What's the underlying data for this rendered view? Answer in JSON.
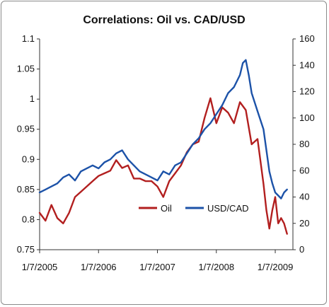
{
  "chart_data": {
    "type": "line",
    "title": "Correlations: Oil vs. CAD/USD",
    "xlabel": "",
    "ylabel_left": "",
    "ylabel_right": "",
    "x_tick_labels": [
      "1/7/2005",
      "1/7/2006",
      "1/7/2007",
      "1/7/2008",
      "1/7/2009"
    ],
    "x_range": [
      2005.0,
      2009.3
    ],
    "y_left": {
      "range": [
        0.75,
        1.1
      ],
      "ticks": [
        "0.75",
        "0.8",
        "0.85",
        "0.9",
        "0.95",
        "1",
        "1.05",
        "1.1"
      ]
    },
    "y_right": {
      "range": [
        0,
        160
      ],
      "ticks": [
        "0",
        "20",
        "40",
        "60",
        "80",
        "100",
        "120",
        "140",
        "160"
      ]
    },
    "grid": false,
    "legend": {
      "placement": "lower-center",
      "entries": [
        "Oil",
        "USD/CAD"
      ]
    },
    "series": [
      {
        "name": "Oil",
        "axis": "right",
        "color": "#b21f1f",
        "x": [
          2005.0,
          2005.1,
          2005.2,
          2005.3,
          2005.4,
          2005.5,
          2005.6,
          2005.7,
          2005.8,
          2005.9,
          2006.0,
          2006.1,
          2006.2,
          2006.3,
          2006.4,
          2006.5,
          2006.6,
          2006.7,
          2006.8,
          2006.9,
          2007.0,
          2007.1,
          2007.2,
          2007.3,
          2007.4,
          2007.5,
          2007.6,
          2007.7,
          2007.8,
          2007.9,
          2008.0,
          2008.1,
          2008.2,
          2008.3,
          2008.4,
          2008.5,
          2008.6,
          2008.7,
          2008.8,
          2008.85,
          2008.9,
          2008.95,
          2009.0,
          2009.05,
          2009.1,
          2009.15,
          2009.2
        ],
        "values": [
          28,
          22,
          34,
          24,
          20,
          28,
          40,
          44,
          48,
          52,
          56,
          58,
          60,
          68,
          62,
          64,
          54,
          54,
          52,
          52,
          48,
          40,
          52,
          58,
          64,
          74,
          80,
          82,
          100,
          115,
          96,
          108,
          104,
          96,
          112,
          106,
          80,
          84,
          50,
          30,
          16,
          30,
          40,
          20,
          24,
          20,
          12
        ]
      },
      {
        "name": "USD/CAD",
        "axis": "left",
        "color": "#1c52a8",
        "x": [
          2005.0,
          2005.1,
          2005.2,
          2005.3,
          2005.4,
          2005.5,
          2005.6,
          2005.7,
          2005.8,
          2005.9,
          2006.0,
          2006.1,
          2006.2,
          2006.3,
          2006.4,
          2006.5,
          2006.6,
          2006.7,
          2006.8,
          2006.9,
          2007.0,
          2007.1,
          2007.2,
          2007.3,
          2007.4,
          2007.5,
          2007.6,
          2007.7,
          2007.8,
          2007.9,
          2008.0,
          2008.1,
          2008.2,
          2008.3,
          2008.4,
          2008.45,
          2008.5,
          2008.55,
          2008.6,
          2008.7,
          2008.8,
          2008.9,
          2008.95,
          2009.0,
          2009.05,
          2009.1,
          2009.15,
          2009.2
        ],
        "values": [
          0.845,
          0.85,
          0.855,
          0.86,
          0.87,
          0.875,
          0.865,
          0.88,
          0.885,
          0.89,
          0.885,
          0.895,
          0.9,
          0.91,
          0.915,
          0.9,
          0.89,
          0.88,
          0.875,
          0.87,
          0.865,
          0.88,
          0.875,
          0.89,
          0.895,
          0.91,
          0.925,
          0.935,
          0.95,
          0.96,
          0.975,
          0.99,
          1.01,
          1.02,
          1.04,
          1.06,
          1.065,
          1.04,
          1.01,
          0.98,
          0.95,
          0.88,
          0.86,
          0.845,
          0.84,
          0.835,
          0.845,
          0.85
        ]
      }
    ]
  }
}
